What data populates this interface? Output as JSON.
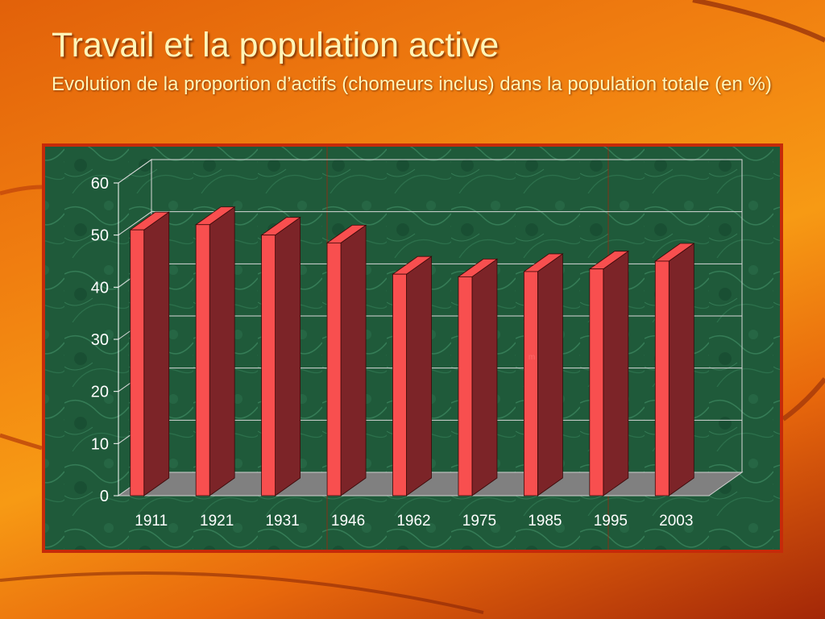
{
  "slide": {
    "title": "Travail et la population active",
    "subtitle": "Evolution de la proportion d’actifs (chomeurs inclus) dans la population totale (en %)"
  },
  "colors": {
    "background": "#f08a12",
    "title_text": "#fff5b8",
    "chart_background": "#1f5a3a",
    "frame": "#c62a0a",
    "bar_front": "#f84f4f",
    "bar_side": "#7c2428",
    "floor": "#808080"
  },
  "chart_data": {
    "type": "bar",
    "categories": [
      "1911",
      "1921",
      "1931",
      "1946",
      "1962",
      "1975",
      "1985",
      "1995",
      "2003"
    ],
    "values": [
      51,
      52,
      50,
      48.5,
      42.5,
      42,
      43,
      43.5,
      45
    ],
    "ylim": [
      0,
      60
    ],
    "yticks": [
      0,
      10,
      20,
      30,
      40,
      50,
      60
    ],
    "style": "3d",
    "grid": true,
    "legend": "none",
    "annotation": "m"
  }
}
